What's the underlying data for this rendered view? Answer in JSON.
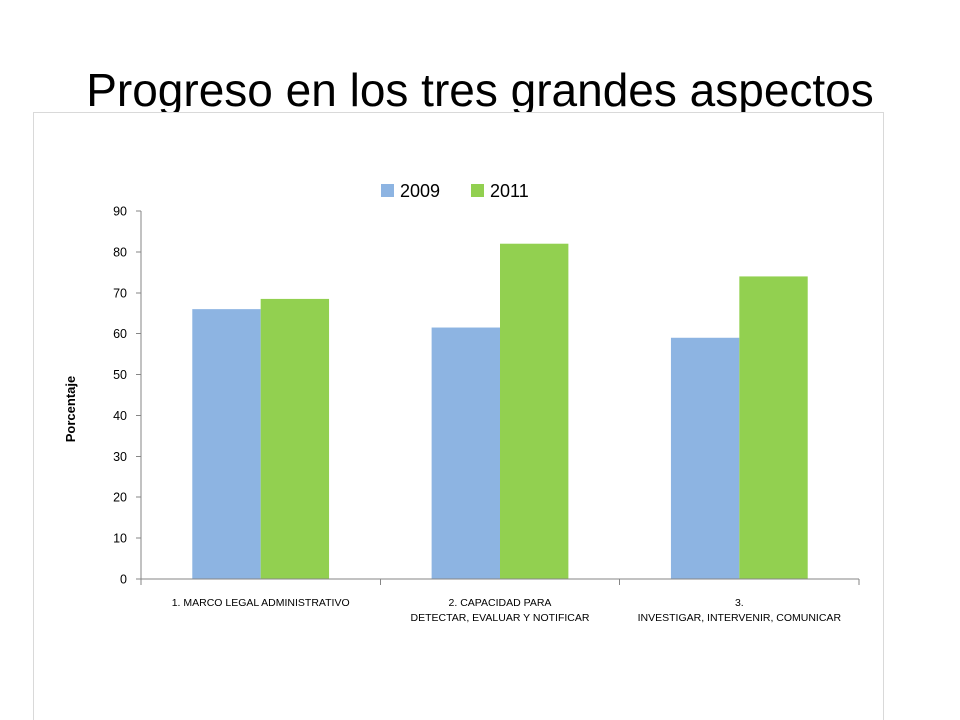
{
  "slide": {
    "title": "Progreso en los tres grandes aspectos"
  },
  "chart_data": {
    "type": "bar",
    "categories": [
      [
        "1. MARCO LEGAL ADMINISTRATIVO"
      ],
      [
        "2. CAPACIDAD PARA",
        "DETECTAR, EVALUAR Y NOTIFICAR"
      ],
      [
        "3.",
        "INVESTIGAR, INTERVENIR, COMUNICAR"
      ]
    ],
    "series": [
      {
        "name": "2009",
        "color": "#8DB4E2",
        "values": [
          66,
          61.5,
          59
        ]
      },
      {
        "name": "2011",
        "color": "#92D050",
        "values": [
          68.5,
          82,
          74
        ]
      }
    ],
    "ylabel": "Porcentaje",
    "ylim": [
      0,
      90
    ],
    "yticks": [
      0,
      10,
      20,
      30,
      40,
      50,
      60,
      70,
      80,
      90
    ],
    "grid": false,
    "legend": "top"
  }
}
